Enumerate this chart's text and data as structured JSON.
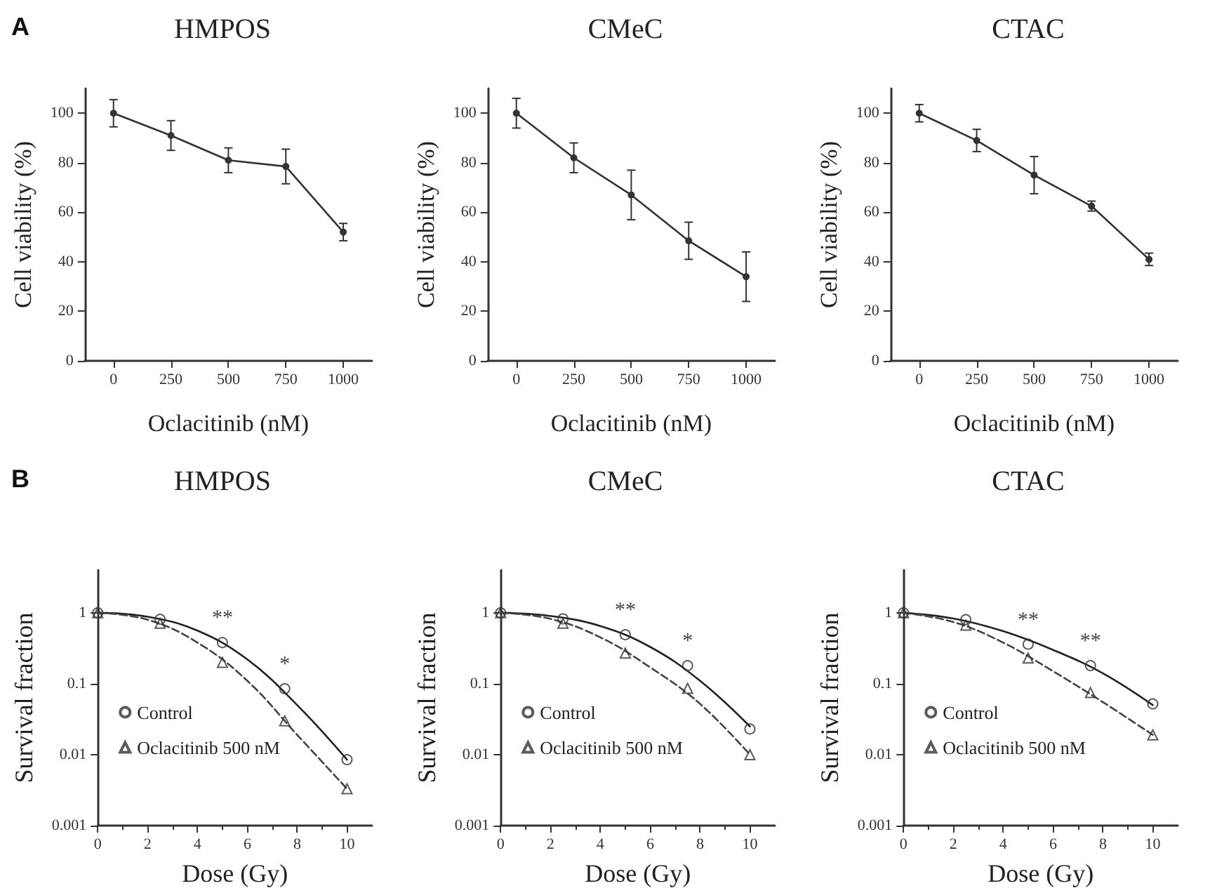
{
  "chart_data": [
    {
      "type": "line",
      "title": "HMPOS",
      "xlabel": "Oclacitinib (nM)",
      "ylabel": "Cell viability (%)",
      "annotations": [
        "A"
      ],
      "categories": [
        "0",
        "250",
        "500",
        "750",
        "1000"
      ],
      "ylim": [
        0,
        110
      ],
      "yticks": [
        0,
        20,
        40,
        60,
        80,
        100
      ],
      "grid": false,
      "legend": false,
      "marker": "circle",
      "series": [
        {
          "color": "#333333",
          "values": [
            100,
            91,
            81,
            78.5,
            52
          ],
          "errors": [
            5.5,
            6,
            5,
            7,
            3.5
          ]
        }
      ]
    },
    {
      "type": "line",
      "title": "CMeC",
      "xlabel": "Oclacitinib (nM)",
      "ylabel": "Cell viability (%)",
      "categories": [
        "0",
        "250",
        "500",
        "750",
        "1000"
      ],
      "ylim": [
        0,
        110
      ],
      "yticks": [
        0,
        20,
        40,
        60,
        80,
        100
      ],
      "grid": false,
      "legend": false,
      "marker": "circle",
      "series": [
        {
          "color": "#333333",
          "values": [
            100,
            82,
            67,
            48.5,
            34
          ],
          "errors": [
            6,
            6,
            10,
            7.5,
            10
          ]
        }
      ]
    },
    {
      "type": "line",
      "title": "CTAC",
      "xlabel": "Oclacitinib (nM)",
      "ylabel": "Cell viability (%)",
      "categories": [
        "0",
        "250",
        "500",
        "750",
        "1000"
      ],
      "ylim": [
        0,
        110
      ],
      "yticks": [
        0,
        20,
        40,
        60,
        80,
        100
      ],
      "grid": false,
      "legend": false,
      "marker": "circle",
      "series": [
        {
          "color": "#333333",
          "values": [
            100,
            89,
            75,
            62.5,
            41
          ],
          "errors": [
            3.5,
            4.5,
            7.5,
            2,
            2.5
          ]
        }
      ]
    },
    {
      "type": "scatter",
      "title": "HMPOS",
      "xlabel": "Dose (Gy)",
      "ylabel": "Survival fraction",
      "x": [
        0,
        2.5,
        5,
        7.5,
        10
      ],
      "xlim": [
        0,
        11
      ],
      "xticks": [
        0,
        2,
        4,
        6,
        8,
        10
      ],
      "ylim": [
        0.001,
        4
      ],
      "yticks": [
        0.001,
        0.01,
        0.1,
        1
      ],
      "log": "y",
      "grid": false,
      "legend": "bottom left",
      "annotations": [
        "B",
        "**",
        "*"
      ],
      "series": [
        {
          "name": "Control",
          "color": "#333333",
          "marker": "circle",
          "values": [
            1,
            0.81,
            0.38,
            0.085,
            0.0085
          ]
        },
        {
          "name": "Oclacitinib 500 nM",
          "color": "#333333",
          "marker": "triangle",
          "values": [
            1,
            0.71,
            0.2,
            0.03,
            0.0033
          ]
        },
        {
          "type": "line",
          "color": "#222222",
          "marker": "none",
          "line_style": "solid",
          "x": [
            0,
            2,
            4,
            6,
            8,
            10
          ],
          "values": [
            1,
            0.88,
            0.56,
            0.22,
            0.05,
            0.0085
          ]
        },
        {
          "type": "line",
          "color": "#444444",
          "marker": "none",
          "line_style": "dashed",
          "x": [
            0,
            2,
            4,
            6,
            8,
            10
          ],
          "values": [
            1,
            0.8,
            0.38,
            0.11,
            0.019,
            0.0033
          ]
        }
      ]
    },
    {
      "type": "scatter",
      "title": "CMeC",
      "xlabel": "Dose (Gy)",
      "ylabel": "Survival fraction",
      "x": [
        0,
        2.5,
        5,
        7.5,
        10
      ],
      "xlim": [
        0,
        11
      ],
      "xticks": [
        0,
        2,
        4,
        6,
        8,
        10
      ],
      "ylim": [
        0.001,
        4
      ],
      "yticks": [
        0.001,
        0.01,
        0.1,
        1
      ],
      "log": "y",
      "grid": false,
      "legend": "bottom left",
      "annotations": [
        "**",
        "*"
      ],
      "series": [
        {
          "name": "Control",
          "color": "#333333",
          "marker": "circle",
          "values": [
            1,
            0.82,
            0.49,
            0.18,
            0.023
          ]
        },
        {
          "name": "Oclacitinib 500 nM",
          "color": "#333333",
          "marker": "triangle",
          "values": [
            1,
            0.71,
            0.27,
            0.086,
            0.01
          ]
        },
        {
          "type": "line",
          "color": "#222222",
          "marker": "none",
          "line_style": "solid",
          "x": [
            0,
            2,
            4,
            6,
            8,
            10
          ],
          "values": [
            1,
            0.9,
            0.65,
            0.33,
            0.11,
            0.025
          ]
        },
        {
          "type": "line",
          "color": "#444444",
          "marker": "none",
          "line_style": "dashed",
          "x": [
            0,
            2,
            4,
            6,
            8,
            10
          ],
          "values": [
            1,
            0.82,
            0.45,
            0.17,
            0.052,
            0.01
          ]
        }
      ]
    },
    {
      "type": "scatter",
      "title": "CTAC",
      "xlabel": "Dose (Gy)",
      "ylabel": "Survival fraction",
      "x": [
        0,
        2.5,
        5,
        7.5,
        10
      ],
      "xlim": [
        0,
        11
      ],
      "xticks": [
        0,
        2,
        4,
        6,
        8,
        10
      ],
      "ylim": [
        0.001,
        4
      ],
      "yticks": [
        0.001,
        0.01,
        0.1,
        1
      ],
      "log": "y",
      "grid": false,
      "legend": "bottom left",
      "annotations": [
        "**",
        "**"
      ],
      "series": [
        {
          "name": "Control",
          "color": "#333333",
          "marker": "circle",
          "values": [
            1,
            0.8,
            0.36,
            0.18,
            0.052
          ]
        },
        {
          "name": "Oclacitinib 500 nM",
          "color": "#333333",
          "marker": "triangle",
          "values": [
            1,
            0.67,
            0.23,
            0.075,
            0.019
          ]
        },
        {
          "type": "line",
          "color": "#222222",
          "marker": "none",
          "line_style": "solid",
          "x": [
            0,
            2,
            4,
            6,
            8,
            10
          ],
          "values": [
            1,
            0.83,
            0.55,
            0.3,
            0.14,
            0.05
          ]
        },
        {
          "type": "line",
          "color": "#444444",
          "marker": "none",
          "line_style": "dashed",
          "x": [
            0,
            2,
            4,
            6,
            8,
            10
          ],
          "values": [
            1,
            0.74,
            0.38,
            0.15,
            0.055,
            0.019
          ]
        }
      ]
    }
  ]
}
